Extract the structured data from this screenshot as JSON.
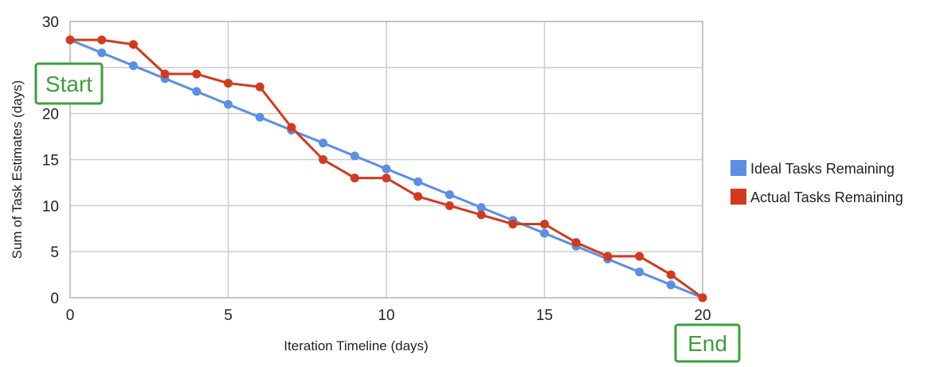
{
  "chart_data": {
    "type": "line",
    "title": "",
    "xlabel": "Iteration Timeline (days)",
    "ylabel": "Sum of Task Estimates (days)",
    "xlim": [
      0,
      20
    ],
    "ylim": [
      0,
      30
    ],
    "x_ticks": [
      0,
      5,
      10,
      15,
      20
    ],
    "y_ticks": [
      0,
      5,
      10,
      15,
      20,
      25,
      30
    ],
    "grid": true,
    "legend_position": "right",
    "x": [
      0,
      1,
      2,
      3,
      4,
      5,
      6,
      7,
      8,
      9,
      10,
      11,
      12,
      13,
      14,
      15,
      16,
      17,
      18,
      19,
      20
    ],
    "series": [
      {
        "name": "Ideal Tasks Remaining",
        "color": "#5b8ee6",
        "values": [
          28,
          26.6,
          25.2,
          23.8,
          22.4,
          21,
          19.6,
          18.2,
          16.8,
          15.4,
          14,
          12.6,
          11.2,
          9.8,
          8.4,
          7,
          5.6,
          4.2,
          2.8,
          1.4,
          0
        ]
      },
      {
        "name": "Actual Tasks Remaining",
        "color": "#d23a1e",
        "values": [
          28,
          28,
          27.5,
          24.3,
          24.3,
          23.3,
          22.9,
          18.5,
          15,
          13,
          13,
          11,
          10,
          9,
          8,
          8,
          6,
          4.5,
          4.5,
          2.5,
          0
        ]
      }
    ],
    "annotations": [
      {
        "text": "Start",
        "color": "#3aa03a"
      },
      {
        "text": "End",
        "color": "#3aa03a"
      }
    ]
  }
}
